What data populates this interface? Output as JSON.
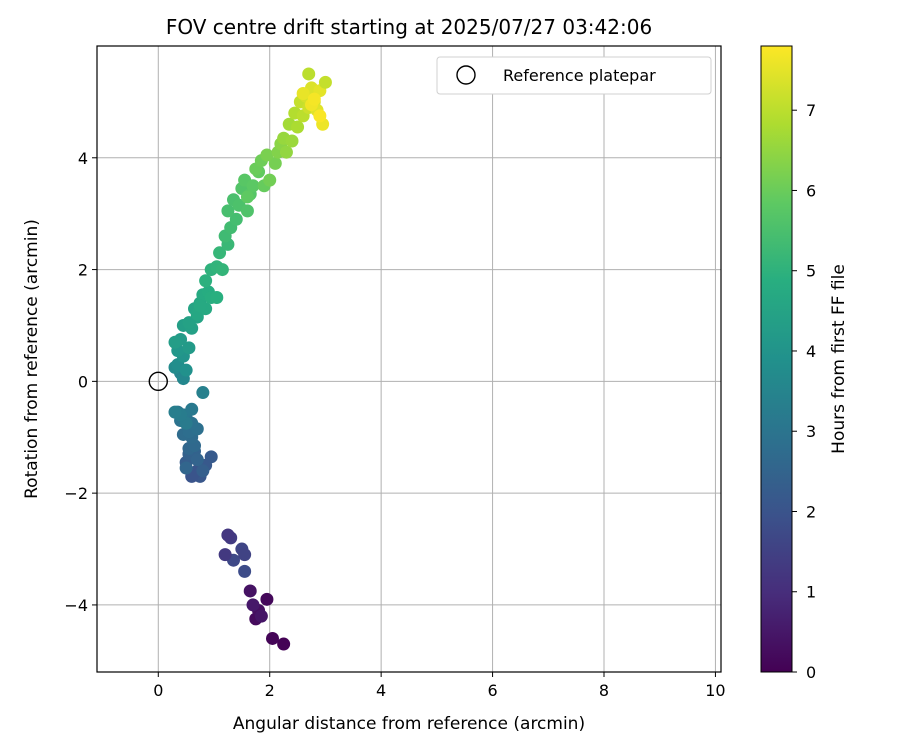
{
  "chart_data": {
    "type": "scatter",
    "title": "FOV centre drift starting at 2025/07/27 03:42:06",
    "xlabel": "Angular distance from reference (arcmin)",
    "ylabel": "Rotation from reference (arcmin)",
    "xlim": [
      -1.1,
      10.1
    ],
    "ylim": [
      -5.2,
      6.0
    ],
    "xticks": [
      0,
      2,
      4,
      6,
      8,
      10
    ],
    "yticks": [
      -4,
      -2,
      0,
      2,
      4
    ],
    "grid": true,
    "legend": {
      "placement": "top-right",
      "entries": [
        "Reference platepar"
      ]
    },
    "reference_point": {
      "x": 0,
      "y": 0,
      "label": "Reference platepar"
    },
    "colorbar": {
      "label": "Hours from first FF file",
      "colormap": "viridis",
      "range": [
        0,
        7.8
      ],
      "ticks": [
        0,
        1,
        2,
        3,
        4,
        5,
        6,
        7
      ]
    },
    "series": [
      {
        "x": [
          2.25,
          2.05,
          1.95,
          1.75,
          1.8,
          1.65,
          1.85,
          1.7,
          1.55,
          1.35,
          1.5,
          1.55,
          1.25,
          1.3,
          1.2,
          1.25,
          0.95,
          0.85,
          0.75,
          0.7,
          0.6,
          0.5,
          0.55,
          0.65,
          0.8,
          0.7,
          0.5,
          0.55,
          0.65,
          0.6,
          0.45,
          0.55,
          0.7,
          0.6,
          0.4,
          0.5,
          0.35,
          0.45,
          0.6,
          0.5,
          0.4,
          0.3,
          0.8,
          0.4,
          0.45,
          0.3,
          0.35,
          0.5,
          0.45,
          0.35,
          0.55,
          0.4,
          0.3,
          0.45,
          0.6,
          0.7,
          0.65,
          0.55,
          0.75,
          0.7,
          0.85,
          0.8,
          0.9,
          0.95,
          1.05,
          0.85,
          0.75,
          0.95,
          1.05,
          1.15,
          1.1,
          1.25,
          1.2,
          1.3,
          1.4,
          1.25,
          1.35,
          1.45,
          1.6,
          1.5,
          1.65,
          1.55,
          1.7,
          1.6,
          1.8,
          1.9,
          1.75,
          1.85,
          2.0,
          2.1,
          1.95,
          2.15,
          2.2,
          2.3,
          2.25,
          2.4,
          2.35,
          2.5,
          2.45,
          2.6,
          2.55,
          2.7,
          2.65,
          2.8,
          2.75,
          2.85,
          2.9,
          2.6,
          2.7,
          2.95,
          3.0,
          2.75,
          2.8,
          2.9
        ],
        "y": [
          -4.7,
          -4.6,
          -3.9,
          -4.25,
          -4.1,
          -3.75,
          -4.2,
          -4.0,
          -3.4,
          -3.2,
          -3.0,
          -3.1,
          -2.75,
          -2.8,
          -3.1,
          -2.75,
          -1.35,
          -1.5,
          -1.7,
          -1.6,
          -1.7,
          -1.45,
          -1.3,
          -1.25,
          -1.6,
          -1.4,
          -1.55,
          -1.2,
          -1.15,
          -1.0,
          -0.95,
          -0.9,
          -0.85,
          -0.75,
          -0.7,
          -0.65,
          -0.55,
          -0.6,
          -0.5,
          -0.75,
          -0.6,
          -0.55,
          -0.2,
          0.15,
          0.05,
          0.25,
          0.3,
          0.2,
          0.45,
          0.55,
          0.6,
          0.75,
          0.7,
          1.0,
          0.95,
          1.15,
          1.3,
          1.05,
          1.4,
          1.2,
          1.3,
          1.55,
          1.6,
          1.5,
          1.5,
          1.8,
          1.35,
          2.0,
          2.05,
          2.0,
          2.3,
          2.45,
          2.6,
          2.75,
          2.9,
          3.05,
          3.25,
          3.15,
          3.05,
          3.45,
          3.35,
          3.6,
          3.5,
          3.3,
          3.75,
          3.5,
          3.8,
          3.95,
          3.6,
          3.9,
          4.05,
          4.1,
          4.25,
          4.1,
          4.35,
          4.3,
          4.6,
          4.55,
          4.8,
          4.75,
          5.0,
          4.9,
          5.1,
          5.0,
          5.25,
          4.85,
          5.2,
          5.15,
          5.5,
          4.6,
          5.35,
          4.95,
          5.05,
          4.75
        ],
        "hours": [
          0.02,
          0.08,
          0.15,
          0.22,
          0.3,
          0.38,
          0.45,
          0.52,
          1.8,
          1.7,
          1.6,
          1.55,
          1.4,
          1.35,
          1.3,
          1.25,
          2.2,
          2.15,
          2.1,
          2.05,
          2.0,
          2.3,
          2.4,
          2.45,
          2.35,
          2.5,
          2.55,
          2.6,
          2.65,
          2.7,
          2.75,
          2.8,
          2.85,
          2.9,
          2.95,
          3.0,
          3.05,
          3.1,
          3.15,
          3.2,
          3.25,
          3.3,
          3.35,
          3.5,
          3.6,
          3.7,
          3.8,
          3.9,
          4.0,
          4.1,
          4.2,
          4.25,
          4.3,
          4.35,
          4.4,
          4.5,
          4.55,
          4.45,
          4.6,
          4.65,
          4.7,
          4.75,
          4.8,
          4.85,
          4.9,
          4.95,
          4.7,
          5.0,
          5.05,
          5.1,
          5.15,
          5.2,
          5.3,
          5.35,
          5.4,
          5.45,
          5.5,
          5.55,
          5.6,
          5.65,
          5.7,
          5.75,
          5.8,
          5.85,
          5.9,
          5.95,
          6.0,
          6.05,
          6.1,
          6.15,
          6.2,
          6.3,
          6.4,
          6.5,
          6.55,
          6.6,
          6.7,
          6.8,
          6.9,
          7.0,
          7.1,
          7.2,
          7.3,
          7.35,
          7.4,
          7.45,
          7.5,
          7.55,
          7.0,
          7.6,
          7.1,
          7.65,
          7.7,
          7.75
        ]
      }
    ]
  }
}
